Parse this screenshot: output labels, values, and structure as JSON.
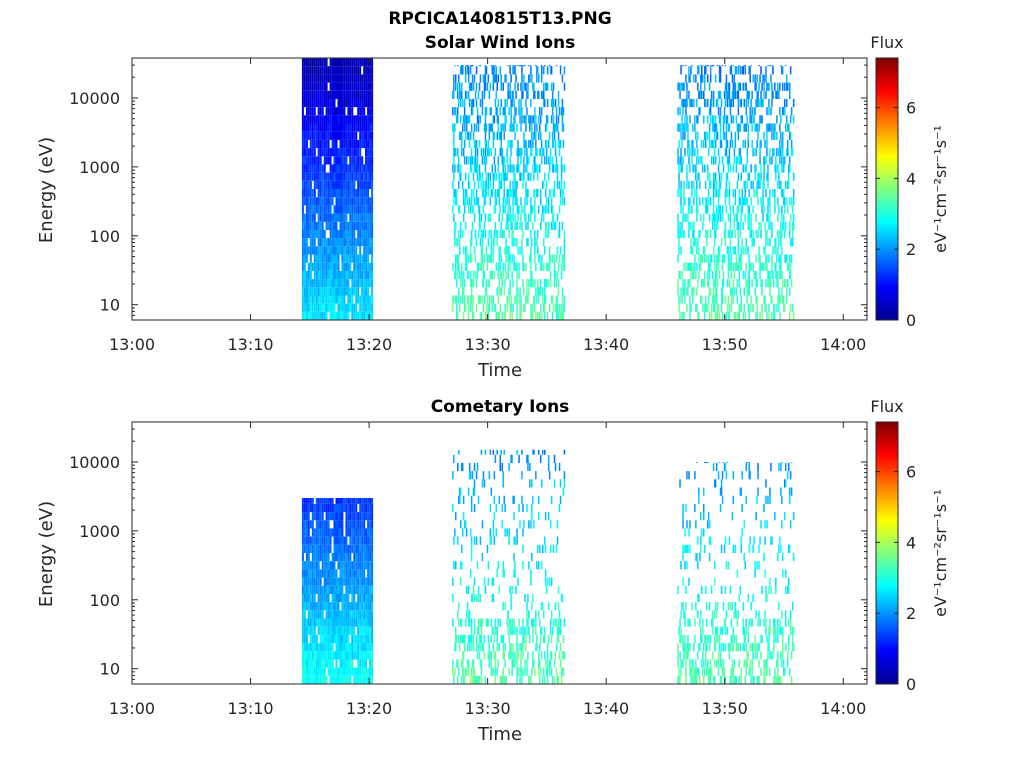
{
  "figure": {
    "title": "RPCICA140815T13.PNG"
  },
  "colorbar": {
    "label": "Flux",
    "unit": "eV⁻¹cm⁻²sr⁻¹s⁻¹",
    "range": [
      0,
      7.4
    ],
    "ticks": [
      "0",
      "2",
      "4",
      "6"
    ],
    "colormap": "jet"
  },
  "chart_data": [
    {
      "type": "heatmap",
      "title": "Solar Wind Ions",
      "xlabel": "Time",
      "ylabel": "Energy (eV)",
      "x_ticks": [
        "13:00",
        "13:10",
        "13:20",
        "13:30",
        "13:40",
        "13:50",
        "14:00"
      ],
      "y_ticks": [
        "10",
        "100",
        "1000",
        "10000"
      ],
      "xlim": [
        "13:00",
        "14:02"
      ],
      "ylim": [
        6,
        38000
      ],
      "y_scale": "log",
      "colorbar_range": [
        0,
        7.4
      ],
      "regions": [
        {
          "t_start": "13:14:20",
          "t_end": "13:20:15",
          "e_min": 6,
          "e_max": 38000,
          "flux": "0.5-2.5 (dense block, highest flux at low energy)"
        },
        {
          "t_start": "13:27:00",
          "t_end": "13:36:30",
          "e_min": 6,
          "e_max": 30000,
          "flux": "1.5-3.5 (scattered)"
        },
        {
          "t_start": "13:46:00",
          "t_end": "13:55:50",
          "e_min": 6,
          "e_max": 30000,
          "flux": "1.5-3.5 (scattered)"
        }
      ]
    },
    {
      "type": "heatmap",
      "title": "Cometary Ions",
      "xlabel": "Time",
      "ylabel": "Energy (eV)",
      "x_ticks": [
        "13:00",
        "13:10",
        "13:20",
        "13:30",
        "13:40",
        "13:50",
        "14:00"
      ],
      "y_ticks": [
        "10",
        "100",
        "1000",
        "10000"
      ],
      "xlim": [
        "13:00",
        "14:02"
      ],
      "ylim": [
        6,
        38000
      ],
      "y_scale": "log",
      "colorbar_range": [
        0,
        7.4
      ],
      "regions": [
        {
          "t_start": "13:14:20",
          "t_end": "13:20:15",
          "e_min": 6,
          "e_max": 3000,
          "flux": "0.5-2.8 (dense block, highest flux at low energy)"
        },
        {
          "t_start": "13:27:00",
          "t_end": "13:36:30",
          "e_min": 6,
          "e_max": 15000,
          "flux": "1-3.5 (scattered)"
        },
        {
          "t_start": "13:46:00",
          "t_end": "13:55:50",
          "e_min": 6,
          "e_max": 10000,
          "flux": "1-3.2 (scattered)"
        }
      ]
    }
  ]
}
